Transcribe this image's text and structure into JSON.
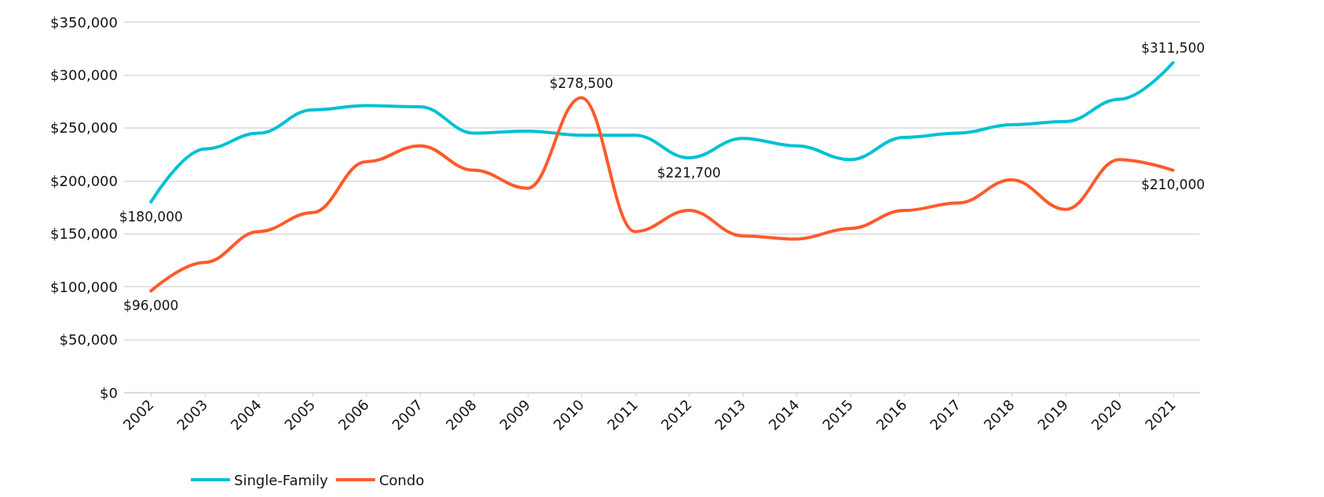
{
  "chart_data": {
    "type": "line",
    "categories": [
      "2002",
      "2003",
      "2004",
      "2005",
      "2006",
      "2007",
      "2008",
      "2009",
      "2010",
      "2011",
      "2012",
      "2013",
      "2014",
      "2015",
      "2016",
      "2017",
      "2018",
      "2019",
      "2020",
      "2021"
    ],
    "series": [
      {
        "name": "Single-Family",
        "color": "#00c0d4",
        "values": [
          180000,
          230000,
          245000,
          267000,
          271000,
          270000,
          245000,
          247000,
          243000,
          243000,
          221700,
          240000,
          233000,
          220000,
          241000,
          245000,
          253000,
          256000,
          277000,
          311500
        ],
        "value_labels": [
          "$180,000",
          null,
          null,
          null,
          null,
          null,
          null,
          null,
          null,
          null,
          "$221,700",
          null,
          null,
          null,
          null,
          null,
          null,
          null,
          null,
          "$311,500"
        ]
      },
      {
        "name": "Condo",
        "color": "#ff5a2a",
        "values": [
          96000,
          123000,
          152000,
          170000,
          218000,
          233000,
          210000,
          193000,
          278500,
          152000,
          172000,
          148000,
          145000,
          155000,
          172000,
          179000,
          201000,
          173000,
          220000,
          210000
        ],
        "value_labels": [
          "$96,000",
          null,
          null,
          null,
          null,
          null,
          null,
          null,
          "$278,500",
          null,
          null,
          null,
          null,
          null,
          null,
          null,
          null,
          null,
          null,
          "$210,000"
        ]
      }
    ],
    "ylim": [
      0,
      350000
    ],
    "yticks": [
      {
        "value": 0,
        "label": "$0"
      },
      {
        "value": 50000,
        "label": "$50,000"
      },
      {
        "value": 100000,
        "label": "$100,000"
      },
      {
        "value": 150000,
        "label": "$150,000"
      },
      {
        "value": 200000,
        "label": "$200,000"
      },
      {
        "value": 250000,
        "label": "$250,000"
      },
      {
        "value": 300000,
        "label": "$300,000"
      },
      {
        "value": 350000,
        "label": "$350,000"
      }
    ],
    "grid": "y",
    "legend": "bottom left",
    "marker": "none",
    "line_style": "solid"
  }
}
